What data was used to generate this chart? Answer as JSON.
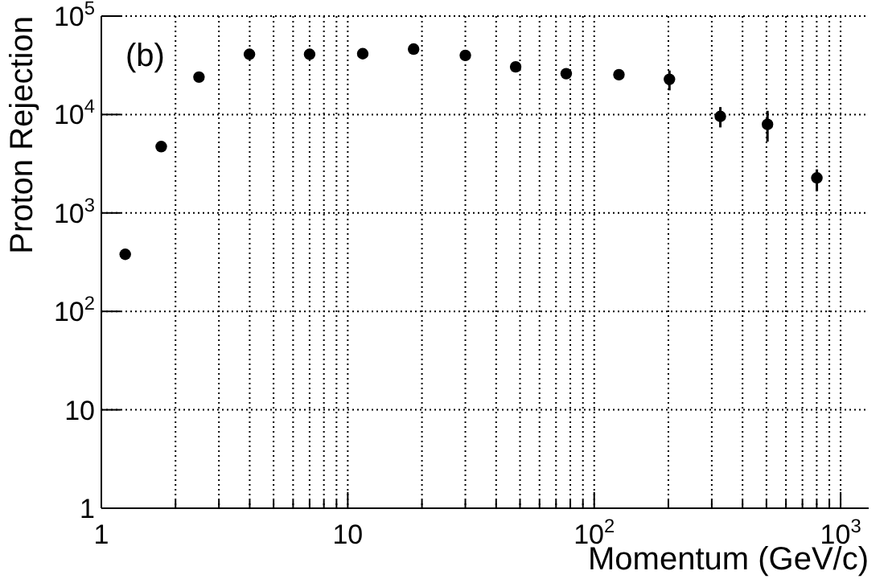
{
  "chart_data": {
    "type": "scatter",
    "xlabel": "Momentum (GeV/c)",
    "ylabel": "Proton Rejection",
    "annotations": [
      "(b)"
    ],
    "x": [
      1.25,
      1.75,
      2.49,
      3.99,
      7.0,
      11.5,
      18.5,
      30,
      48,
      77,
      126,
      202,
      325,
      505,
      801
    ],
    "series": [
      {
        "color": "#000000",
        "values": [
          380,
          4720,
          24000,
          40900,
          40900,
          41500,
          46200,
          39900,
          30500,
          26000,
          25400,
          22800,
          9570,
          7940,
          2270
        ],
        "errors": [
          null,
          null,
          null,
          null,
          null,
          [
            36700,
            41500
          ],
          null,
          null,
          null,
          null,
          [
            22400,
            28900
          ],
          [
            17600,
            28000
          ],
          [
            7400,
            11900
          ],
          [
            5300,
            10900
          ],
          [
            1670,
            2770
          ]
        ]
      }
    ],
    "log": "xy",
    "xlim": [
      1,
      1300
    ],
    "ylim": [
      1,
      100000
    ],
    "xticks": [
      1,
      {
        "value": 2,
        "label": null
      },
      {
        "value": 3,
        "label": null
      },
      {
        "value": 4,
        "label": null
      },
      {
        "value": 5,
        "label": null
      },
      {
        "value": 6,
        "label": null
      },
      {
        "value": 7,
        "label": null
      },
      {
        "value": 8,
        "label": null
      },
      {
        "value": 9,
        "label": null
      },
      10,
      {
        "value": 20,
        "label": null
      },
      {
        "value": 30,
        "label": null
      },
      {
        "value": 40,
        "label": null
      },
      {
        "value": 50,
        "label": null
      },
      {
        "value": 60,
        "label": null
      },
      {
        "value": 70,
        "label": null
      },
      {
        "value": 80,
        "label": null
      },
      {
        "value": 90,
        "label": null
      },
      {
        "value": 100,
        "label": "10$^{2}$"
      },
      {
        "value": 200,
        "label": null
      },
      {
        "value": 300,
        "label": null
      },
      {
        "value": 400,
        "label": null
      },
      {
        "value": 500,
        "label": null
      },
      {
        "value": 600,
        "label": null
      },
      {
        "value": 700,
        "label": null
      },
      {
        "value": 800,
        "label": null
      },
      {
        "value": 900,
        "label": null
      },
      {
        "value": 1000,
        "label": "10$^{3}$"
      }
    ],
    "yticks": [
      1,
      10,
      {
        "value": 100,
        "label": "10$^{2}$"
      },
      {
        "value": 1000,
        "label": "10$^{3}$"
      },
      {
        "value": 10000,
        "label": "10$^{4}$"
      },
      {
        "value": 100000,
        "label": "10$^{5}$"
      }
    ],
    "grid": true,
    "marker": "circle"
  }
}
